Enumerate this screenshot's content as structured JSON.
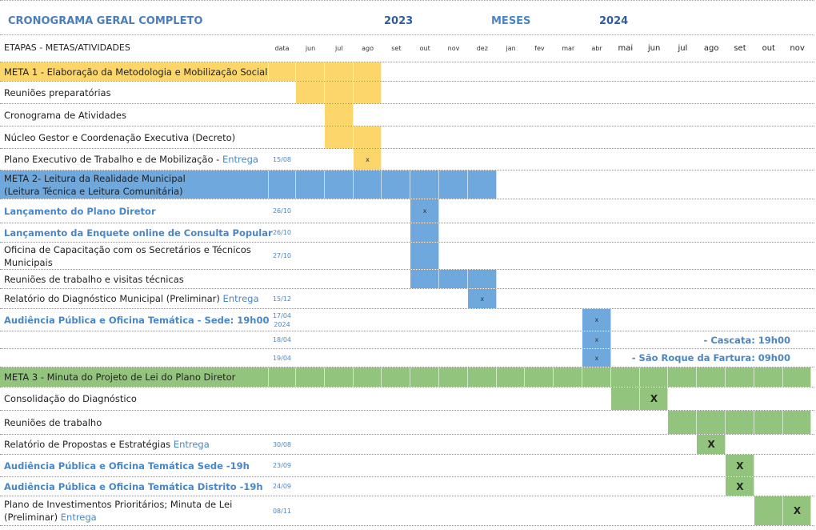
{
  "header": {
    "title": "CRONOGRAMA GERAL COMPLETO",
    "year_1": "2023",
    "months_label": "MESES",
    "year_2": "2024",
    "col_label": "ETAPAS - METAS/ATIVIDADES",
    "col_date": "data",
    "months": [
      "jun",
      "jul",
      "ago",
      "set",
      "out",
      "nov",
      "dez",
      "jan",
      "fev",
      "mar",
      "abr",
      "mai",
      "jun",
      "jul",
      "ago",
      "set",
      "out",
      "nov"
    ]
  },
  "colors": {
    "meta1": "#FDD66B",
    "meta2": "#6FA8DC",
    "meta3": "#93C47D",
    "accent_text": "#4A86C5"
  },
  "rows": [
    {
      "label": "META 1 - Elaboração da Metodologia e Mobilização Social",
      "type": "meta",
      "color": "meta1",
      "fill": [
        0,
        1,
        2
      ]
    },
    {
      "label": "Reuniões preparatórias",
      "color": "meta1",
      "fill": [
        0,
        1,
        2
      ]
    },
    {
      "label": "Cronograma de Atividades",
      "color": "meta1",
      "fill": [
        1
      ]
    },
    {
      "label": "Núcleo Gestor e Coordenação Executiva (Decreto)",
      "color": "meta1",
      "fill": [
        1,
        2
      ]
    },
    {
      "label": "Plano Executivo de Trabalho e de Mobilização - ",
      "accent": "Entrega",
      "date": "15/08",
      "color": "meta1",
      "fill": [
        2
      ],
      "mark": 2,
      "mark_text": "x"
    },
    {
      "label": "META 2- Leitura da Realidade Municipal",
      "label2": "(Leitura Técnica e Leitura Comunitária)",
      "type": "meta",
      "color": "meta2",
      "fill": [
        0,
        1,
        2,
        3,
        4,
        5,
        6
      ]
    },
    {
      "label": "Lançamento do Plano Diretor",
      "style": "blue",
      "date": "26/10",
      "color": "meta2",
      "fill": [
        4
      ],
      "mark": 4,
      "mark_text": "x"
    },
    {
      "label": "Lançamento da Enquete online  de Consulta Popular",
      "style": "blue",
      "date": "26/10",
      "color": "meta2",
      "fill": [
        4
      ]
    },
    {
      "label": "Oficina de Capacitação com os Secretários e Técnicos",
      "label2": "Municipais",
      "date": "27/10",
      "color": "meta2",
      "fill": [
        4
      ]
    },
    {
      "label": "Reuniões de trabalho e visitas técnicas",
      "color": "meta2",
      "fill": [
        4,
        5,
        6
      ]
    },
    {
      "label": "Relatório do Diagnóstico Municipal (Preliminar) ",
      "accent": "Entrega",
      "date": "15/12",
      "color": "meta2",
      "fill": [
        6
      ],
      "mark": 6,
      "mark_text": "x"
    },
    {
      "label": "Audiência Pública e Oficina Temática -  Sede: 19h00",
      "style": "blue",
      "date": "17/04",
      "date2": "2024",
      "color": "meta2",
      "fill": [
        10
      ],
      "mark": 10,
      "mark_text": "x"
    },
    {
      "label": "- Cascata: 19h00",
      "style": "blue",
      "align": "right",
      "date": "18/04",
      "color": "meta2",
      "fill": [
        10
      ],
      "mark": 10,
      "mark_text": "x"
    },
    {
      "label": "- São  Roque da Fartura: 09h00",
      "style": "blue",
      "align": "right",
      "date": "19/04",
      "color": "meta2",
      "fill": [
        10
      ],
      "mark": 10,
      "mark_text": "x"
    },
    {
      "label": "META 3 - Minuta do Projeto de Lei do Plano Diretor",
      "type": "meta",
      "color": "meta3",
      "fill": [
        0,
        1,
        2,
        3,
        4,
        5,
        6,
        7,
        8,
        9,
        10,
        11,
        12,
        13,
        14,
        15,
        16,
        17
      ]
    },
    {
      "label": "Consolidação do Diagnóstico",
      "color": "meta3",
      "fill": [
        11,
        12
      ],
      "mark": 12,
      "mark_text": "X",
      "big": true
    },
    {
      "label": "Reuniões de trabalho",
      "color": "meta3",
      "fill": [
        13,
        14,
        15,
        16,
        17
      ]
    },
    {
      "label": "Relatório de Propostas e Estratégias ",
      "accent": "Entrega",
      "date": "30/08",
      "color": "meta3",
      "fill": [
        14
      ],
      "mark": 14,
      "mark_text": "X",
      "big": true
    },
    {
      "label": "Audiência Pública e Oficina Temática Sede -19h",
      "style": "blue",
      "date": "23/09",
      "color": "meta3",
      "fill": [
        15
      ],
      "mark": 15,
      "mark_text": "X",
      "big": true
    },
    {
      "label": "Audiência Pública e Oficina Temática Distrito -19h",
      "style": "blue",
      "date": "24/09",
      "color": "meta3",
      "fill": [
        15
      ],
      "mark": 15,
      "mark_text": "X",
      "big": true
    },
    {
      "label": "Plano de Investimentos Prioritários; Minuta de Lei",
      "label2": "(Preliminar) ",
      "accent": "Entrega",
      "date": "08/11",
      "color": "meta3",
      "fill": [
        16,
        17
      ],
      "mark": 17,
      "mark_text": "X",
      "big": true
    }
  ]
}
